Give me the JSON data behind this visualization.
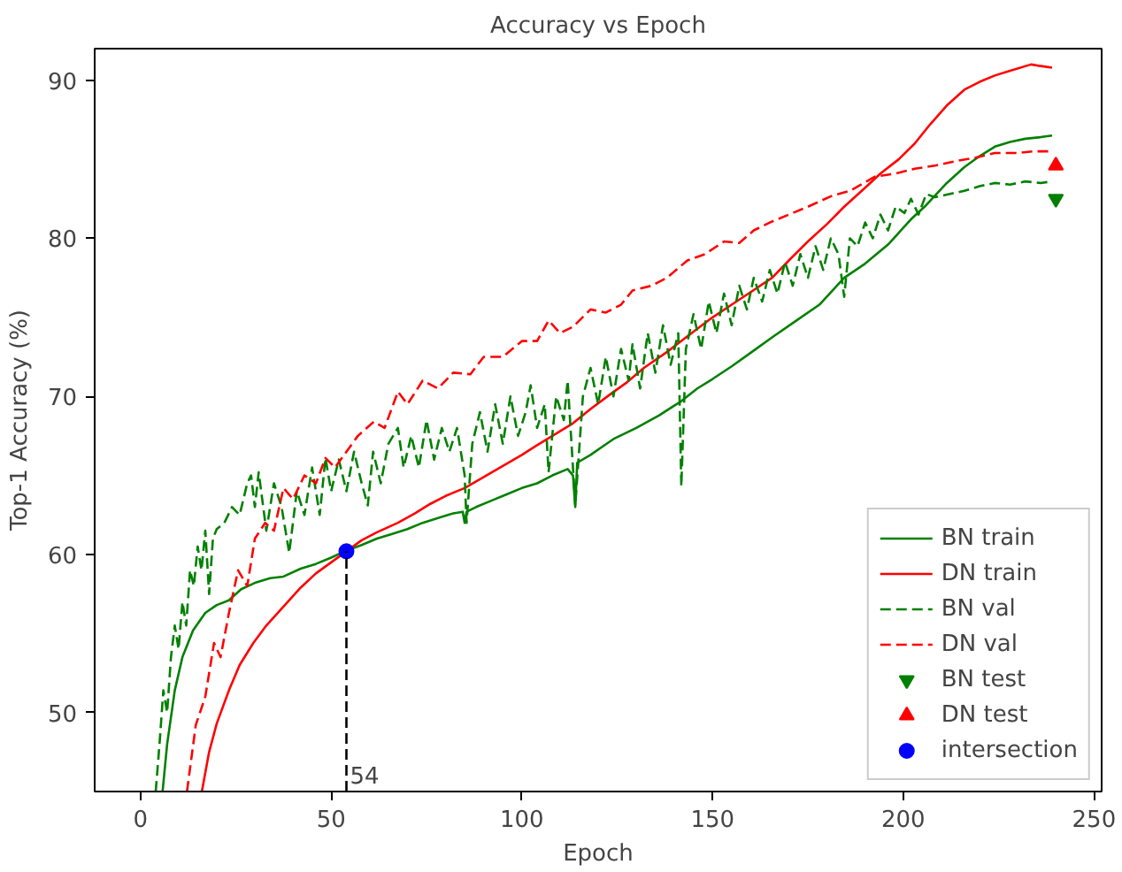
{
  "chart_data": {
    "type": "line",
    "title": "Accuracy vs Epoch",
    "xlabel": "Epoch",
    "ylabel": "Top-1 Accuracy (%)",
    "xlim": [
      -12,
      252
    ],
    "ylim": [
      45,
      92
    ],
    "xticks": [
      0,
      50,
      100,
      150,
      200,
      250
    ],
    "yticks": [
      50,
      60,
      70,
      80,
      90
    ],
    "grid": false,
    "legend": "bottom right",
    "annotations": [
      {
        "text": "54",
        "x": 54,
        "y": 45.5
      }
    ],
    "series": [
      {
        "name": "BN train",
        "color": "#008000",
        "line_style": "solid",
        "x": [
          5.8,
          7,
          9,
          11,
          13.8,
          17,
          20,
          23.2,
          26.4,
          30,
          34,
          37.5,
          42,
          46,
          50,
          53.6,
          58,
          62,
          66,
          70,
          74,
          78,
          82,
          84.5,
          85,
          85.5,
          88,
          92,
          96,
          100,
          104,
          108,
          112,
          113.4,
          114,
          114.5,
          118,
          124,
          130,
          136,
          141.8,
          146,
          150,
          155,
          160.8,
          166,
          172,
          178,
          184.5,
          190,
          196,
          202,
          206,
          211.4,
          216,
          220,
          224,
          228,
          232,
          236,
          239
        ],
        "values": [
          45,
          48,
          51.4,
          53.5,
          55.2,
          56.3,
          56.8,
          57.1,
          57.8,
          58.2,
          58.5,
          58.6,
          59.1,
          59.4,
          59.8,
          60.2,
          60.6,
          61,
          61.3,
          61.6,
          62,
          62.3,
          62.6,
          62.7,
          62,
          62.7,
          63,
          63.4,
          63.8,
          64.2,
          64.5,
          65,
          65.4,
          65,
          63,
          65.8,
          66.3,
          67.3,
          68,
          68.8,
          69.7,
          70.5,
          71.1,
          71.9,
          72.9,
          73.8,
          74.8,
          75.8,
          77.5,
          78.4,
          79.6,
          81.2,
          82.1,
          83.5,
          84.5,
          85.2,
          85.8,
          86.1,
          86.3,
          86.4,
          86.5
        ]
      },
      {
        "name": "DN train",
        "color": "#ff0000",
        "line_style": "solid",
        "x": [
          16.1,
          18,
          20,
          23.2,
          26,
          29.6,
          33,
          37.5,
          42,
          46,
          50,
          54,
          58,
          62,
          67.5,
          72,
          76,
          80,
          85,
          90,
          95,
          100,
          103.9,
          108,
          113.4,
          118,
          123,
          127.6,
          132,
          138,
          145,
          150,
          155,
          160,
          165.6,
          170,
          175,
          180,
          184.5,
          190,
          194,
          198.8,
          203,
          207,
          211.4,
          216,
          220,
          224,
          228,
          233.5,
          236,
          239
        ],
        "values": [
          45,
          47.5,
          49.3,
          51.4,
          53,
          54.4,
          55.5,
          56.7,
          57.9,
          58.8,
          59.5,
          60.2,
          60.9,
          61.4,
          62,
          62.6,
          63.2,
          63.7,
          64.2,
          64.9,
          65.6,
          66.3,
          66.9,
          67.5,
          68.3,
          69.2,
          70.1,
          70.9,
          71.8,
          72.8,
          74.1,
          75,
          75.8,
          76.6,
          77.5,
          78.6,
          79.8,
          80.9,
          82,
          83.2,
          84.1,
          85,
          86,
          87.2,
          88.4,
          89.4,
          89.9,
          90.3,
          90.6,
          91,
          90.9,
          90.8
        ]
      },
      {
        "name": "BN val",
        "color": "#008000",
        "line_style": "dashed",
        "x": [
          4,
          5,
          6,
          7,
          8,
          9,
          10,
          11,
          12,
          13,
          14,
          15,
          16,
          17,
          18,
          19,
          20,
          22,
          24,
          26,
          28,
          29,
          30,
          31,
          33,
          35,
          37,
          39,
          41,
          43,
          45,
          47,
          48.5,
          50,
          52,
          54,
          56,
          58,
          59.6,
          61,
          63,
          65,
          67.5,
          69,
          71,
          73,
          75,
          77,
          79,
          81,
          83,
          85,
          85.5,
          87,
          89,
          91,
          93,
          95,
          97,
          99,
          101,
          102.3,
          104,
          106,
          107,
          109,
          111,
          112,
          114,
          116,
          118,
          120,
          122,
          124,
          126,
          128,
          129,
          131,
          133,
          135,
          137,
          139,
          141,
          141.8,
          143,
          145,
          147,
          149,
          151,
          153,
          155,
          157,
          159,
          160.8,
          163,
          165,
          167,
          169,
          171,
          173,
          175,
          177,
          179,
          181,
          183,
          184.5,
          186,
          188,
          190,
          192,
          194,
          196,
          198,
          200.3,
          202,
          204,
          206,
          208.3,
          212,
          216,
          220,
          224,
          228,
          232,
          236,
          239
        ],
        "values": [
          45,
          48,
          51.4,
          50,
          53.5,
          55.5,
          54,
          57,
          55.5,
          59,
          58,
          60.5,
          59,
          61.5,
          57.5,
          61,
          61.6,
          62,
          63,
          62.5,
          64.5,
          65,
          63,
          65.2,
          61.5,
          64.5,
          63,
          60.1,
          64,
          62.5,
          65.5,
          62.5,
          66.1,
          64,
          66,
          64,
          66.5,
          64.5,
          63.1,
          66.5,
          64.5,
          67,
          68,
          65.5,
          67.5,
          65.5,
          68.5,
          66,
          68,
          66.5,
          68,
          65,
          62,
          67,
          69,
          66.5,
          69.5,
          67,
          70,
          67.5,
          69,
          70.7,
          68,
          69.5,
          65.2,
          70,
          68.5,
          71,
          63.1,
          70,
          71.8,
          69.5,
          72.5,
          70,
          73,
          71,
          73.3,
          70.5,
          74,
          71.5,
          74.5,
          72,
          74,
          64.3,
          73,
          75.2,
          73,
          76,
          74,
          76.5,
          74.5,
          77,
          75.5,
          77.5,
          76,
          78,
          76.5,
          78.5,
          77,
          79,
          77.5,
          79.5,
          78,
          80,
          79,
          76.3,
          80,
          79.5,
          81,
          80,
          81.5,
          80.5,
          82,
          81.6,
          82.5,
          81.5,
          82.8,
          82.6,
          82.8,
          83,
          83.3,
          83.5,
          83.4,
          83.6,
          83.5,
          83.6
        ]
      },
      {
        "name": "DN val",
        "color": "#ff0000",
        "line_style": "dashed",
        "x": [
          12.2,
          14.5,
          17,
          19.3,
          21,
          23.2,
          25.6,
          28,
          30,
          32.7,
          35,
          37.5,
          40,
          43,
          46,
          48.5,
          51,
          54,
          57,
          61.2,
          64,
          67.5,
          70,
          74,
          78,
          82,
          86.5,
          90,
          95,
          100,
          104,
          107,
          110,
          113.4,
          118,
          122,
          126,
          129,
          134,
          138,
          143.4,
          148,
          153,
          157,
          160.8,
          165,
          170,
          175,
          181.4,
          186,
          192.5,
          198,
          203,
          208.3,
          214,
          219,
          224,
          230,
          234,
          238.3
        ],
        "values": [
          45,
          49.2,
          51,
          54.4,
          53.5,
          56.3,
          59,
          58,
          61,
          62,
          61.5,
          64.2,
          63.5,
          65,
          64.5,
          66.1,
          65.5,
          66.5,
          67.5,
          68.4,
          68,
          70.3,
          69.5,
          71,
          70.5,
          71.5,
          71.4,
          72.5,
          72.5,
          73.5,
          73.5,
          74.8,
          74,
          74.4,
          75.5,
          75.3,
          75.8,
          76.7,
          77,
          77.5,
          78.6,
          79,
          79.8,
          79.7,
          80.5,
          81,
          81.5,
          82,
          82.7,
          83,
          83.9,
          84.1,
          84.4,
          84.6,
          84.9,
          85.1,
          85.4,
          85.4,
          85.5,
          85.5
        ]
      },
      {
        "name": "BN test",
        "color": "#008000",
        "type": "scatter",
        "x": [
          240
        ],
        "values": [
          82.5
        ]
      },
      {
        "name": "DN test",
        "color": "#ff0000",
        "type": "scatter",
        "marker": "triangle",
        "x": [
          240
        ],
        "values": [
          84.6
        ]
      },
      {
        "name": "intersection",
        "color": "#0000ff",
        "type": "scatter",
        "marker": "circle",
        "x": [
          54
        ],
        "values": [
          60.2
        ]
      },
      {
        "color": "#000000",
        "line_style": "dashed",
        "x": [
          54,
          54
        ],
        "values": [
          45,
          60.2
        ]
      }
    ]
  }
}
